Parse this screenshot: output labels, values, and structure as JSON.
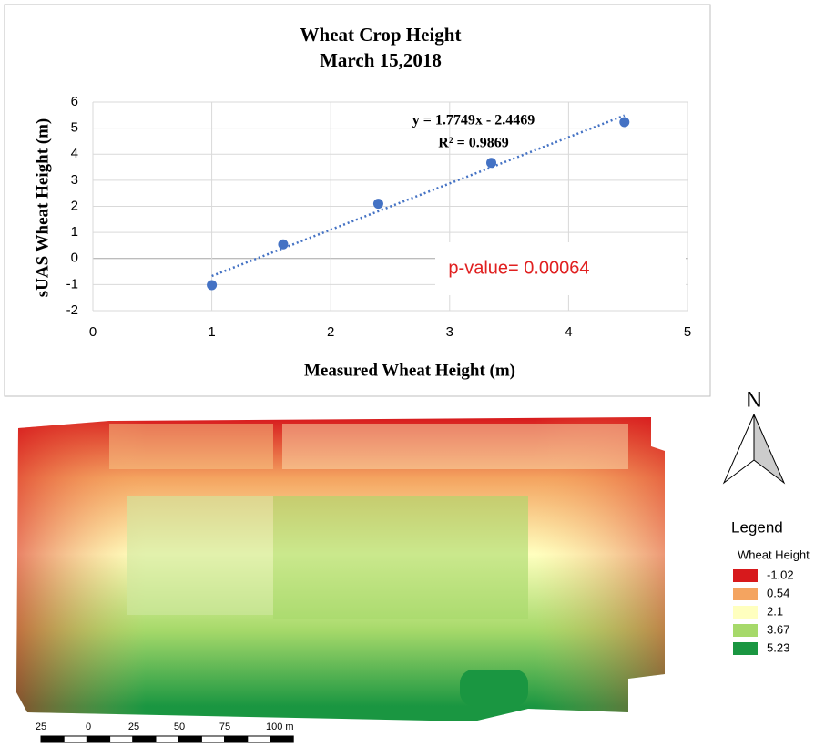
{
  "chart_data": {
    "type": "scatter",
    "title": "Wheat Crop Height",
    "subtitle": "March 15,2018",
    "x_label": "Measured Wheat Height (m)",
    "y_label": "sUAS  Wheat Height (m)",
    "x": [
      1,
      1.6,
      2.4,
      3.35,
      4.47
    ],
    "series": [
      {
        "color": "#4472c4",
        "values": [
          -1.02,
          0.54,
          2.1,
          3.67,
          5.23
        ]
      }
    ],
    "xlim": [
      0,
      5
    ],
    "xticks": [
      0,
      1,
      2,
      3,
      4,
      5
    ],
    "ylim": [
      -2,
      6
    ],
    "yticks": [
      -2,
      -1,
      0,
      1,
      2,
      3,
      4,
      5,
      6
    ],
    "grid": true,
    "trendline": {
      "equation": "y = 1.7749x - 2.4469",
      "r2_label": "R² = 0.9869",
      "slope": 1.7749,
      "intercept": -2.4469
    },
    "annotation": "p-value= 0.00064"
  },
  "map": {
    "north": "N",
    "legend_title": "Legend",
    "legend_subtitle": "Wheat Height",
    "legend_items": [
      {
        "label": "-1.02",
        "color": "#d7191c"
      },
      {
        "label": "0.54",
        "color": "#f4a460"
      },
      {
        "label": "2.1",
        "color": "#ffffbf"
      },
      {
        "label": "3.67",
        "color": "#a6d96a"
      },
      {
        "label": "5.23",
        "color": "#1a9641"
      }
    ],
    "scale_labels": [
      "25",
      "0",
      "25",
      "50",
      "75",
      "100 m"
    ]
  }
}
